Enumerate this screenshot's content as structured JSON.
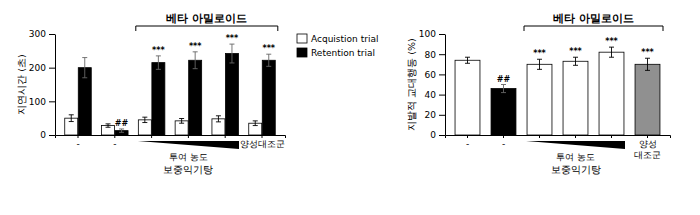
{
  "chart_data": [
    {
      "type": "bar",
      "title": "베타 아밀로이드",
      "ylabel": "지연시간 (초)",
      "xlabel": "보중익기탕",
      "annotations": [
        "투여 농도"
      ],
      "categories": [
        "-",
        "-",
        null,
        null,
        null,
        "양성대조군"
      ],
      "series": [
        {
          "name": "Acquistion trial",
          "color": "white",
          "values": [
            50,
            28,
            45,
            42,
            48,
            35
          ],
          "errors": [
            10,
            5,
            8,
            7,
            9,
            7
          ]
        },
        {
          "name": "Retention trial",
          "color": "black",
          "values": [
            200,
            13,
            215,
            222,
            242,
            222
          ],
          "errors": [
            30,
            5,
            20,
            25,
            28,
            18
          ],
          "significance": [
            null,
            "##",
            "***",
            "***",
            "***",
            "***"
          ]
        }
      ],
      "ylim": [
        0,
        300
      ],
      "yticks": [
        0,
        100,
        200,
        300
      ],
      "grid": false,
      "legend": "right"
    },
    {
      "type": "bar",
      "title": "베타 아밀로이드",
      "ylabel": "지발적 교대행동 (%)",
      "xlabel": "보중익기탕",
      "annotations": [
        "투여 농도"
      ],
      "categories": [
        "-",
        "-",
        null,
        null,
        null,
        "양성\n대조군"
      ],
      "values": [
        74,
        46,
        70,
        73,
        82,
        70
      ],
      "errors": [
        3,
        4,
        5,
        4,
        5,
        6
      ],
      "significance": [
        null,
        "##",
        "***",
        "***",
        "***",
        "***"
      ],
      "colors": [
        "white",
        "black",
        "white",
        "white",
        "white",
        "#909090"
      ],
      "ylim": [
        0,
        100
      ],
      "yticks": [
        0,
        20,
        40,
        60,
        80,
        100
      ],
      "grid": false
    }
  ]
}
